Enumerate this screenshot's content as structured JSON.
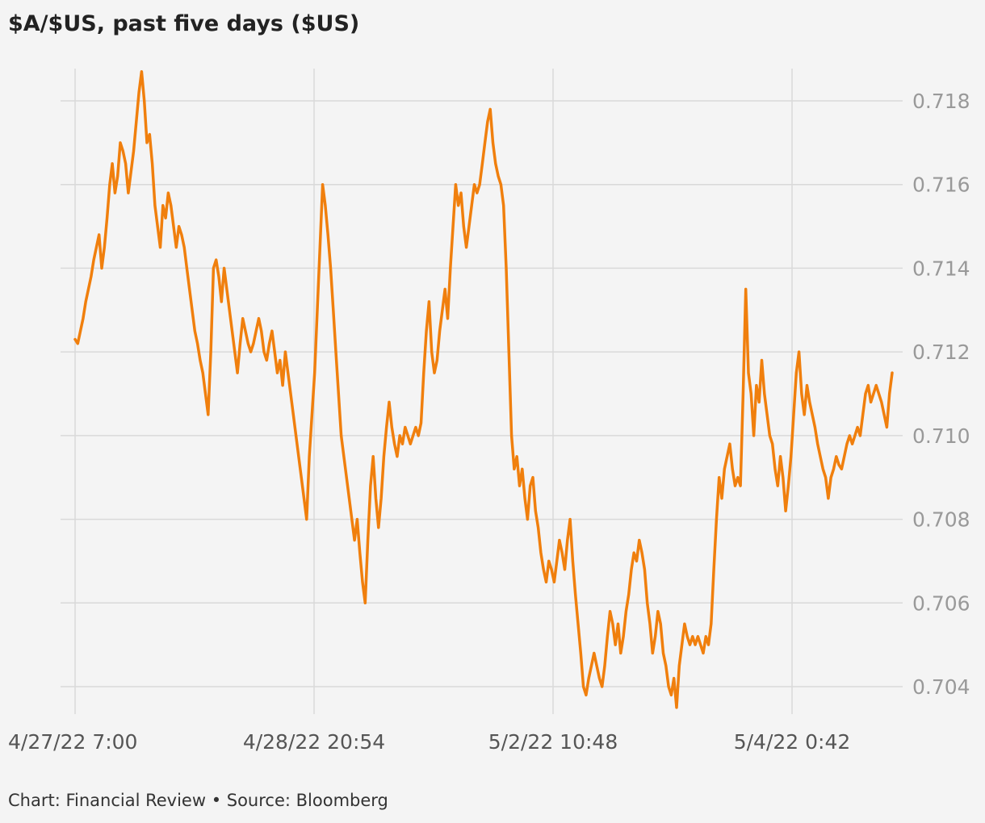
{
  "title": "$A/$US, past five days ($US)",
  "footer": "Chart: Financial Review • Source: Bloomberg",
  "chart_data": {
    "type": "line",
    "title": "$A/$US, past five days ($US)",
    "xlabel": "",
    "ylabel": "",
    "x_ticks": [
      "4/27/22 7:00",
      "4/28/22 20:54",
      "5/2/22 10:48",
      "5/4/22 0:42"
    ],
    "y_ticks": [
      0.704,
      0.706,
      0.708,
      0.71,
      0.712,
      0.714,
      0.716,
      0.718
    ],
    "ylim": [
      0.7033,
      0.7188
    ],
    "y_axis_side": "right",
    "grid": true,
    "color": "#f07f0d",
    "series": [
      {
        "values": [
          0.7123,
          0.7122,
          0.7125,
          0.7128,
          0.7132,
          0.7135,
          0.7138,
          0.7142,
          0.7145,
          0.7148,
          0.714,
          0.7145,
          0.7152,
          0.716,
          0.7165,
          0.7158,
          0.7162,
          0.717,
          0.7168,
          0.7165,
          0.7158,
          0.7163,
          0.7168,
          0.7175,
          0.7182,
          0.7187,
          0.718,
          0.717,
          0.7172,
          0.7165,
          0.7155,
          0.715,
          0.7145,
          0.7155,
          0.7152,
          0.7158,
          0.7155,
          0.715,
          0.7145,
          0.715,
          0.7148,
          0.7145,
          0.714,
          0.7135,
          0.713,
          0.7125,
          0.7122,
          0.7118,
          0.7115,
          0.711,
          0.7105,
          0.712,
          0.714,
          0.7142,
          0.7138,
          0.7132,
          0.714,
          0.7135,
          0.713,
          0.7125,
          0.712,
          0.7115,
          0.7122,
          0.7128,
          0.7125,
          0.7122,
          0.712,
          0.7122,
          0.7125,
          0.7128,
          0.7125,
          0.712,
          0.7118,
          0.7122,
          0.7125,
          0.712,
          0.7115,
          0.7118,
          0.7112,
          0.712,
          0.7115,
          0.711,
          0.7105,
          0.71,
          0.7095,
          0.709,
          0.7085,
          0.708,
          0.7095,
          0.7105,
          0.7115,
          0.713,
          0.7145,
          0.716,
          0.7155,
          0.7148,
          0.714,
          0.713,
          0.712,
          0.711,
          0.71,
          0.7095,
          0.709,
          0.7085,
          0.708,
          0.7075,
          0.708,
          0.7072,
          0.7065,
          0.706,
          0.7075,
          0.7088,
          0.7095,
          0.7085,
          0.7078,
          0.7085,
          0.7095,
          0.7102,
          0.7108,
          0.7102,
          0.7098,
          0.7095,
          0.71,
          0.7098,
          0.7102,
          0.71,
          0.7098,
          0.71,
          0.7102,
          0.71,
          0.7103,
          0.7115,
          0.7125,
          0.7132,
          0.712,
          0.7115,
          0.7118,
          0.7125,
          0.713,
          0.7135,
          0.7128,
          0.714,
          0.715,
          0.716,
          0.7155,
          0.7158,
          0.715,
          0.7145,
          0.715,
          0.7155,
          0.716,
          0.7158,
          0.716,
          0.7165,
          0.717,
          0.7175,
          0.7178,
          0.717,
          0.7165,
          0.7162,
          0.716,
          0.7155,
          0.714,
          0.712,
          0.71,
          0.7092,
          0.7095,
          0.7088,
          0.7092,
          0.7085,
          0.708,
          0.7088,
          0.709,
          0.7082,
          0.7078,
          0.7072,
          0.7068,
          0.7065,
          0.707,
          0.7068,
          0.7065,
          0.707,
          0.7075,
          0.7072,
          0.7068,
          0.7075,
          0.708,
          0.707,
          0.7062,
          0.7055,
          0.7048,
          0.704,
          0.7038,
          0.7042,
          0.7045,
          0.7048,
          0.7045,
          0.7042,
          0.704,
          0.7045,
          0.7052,
          0.7058,
          0.7055,
          0.705,
          0.7055,
          0.7048,
          0.7052,
          0.7058,
          0.7062,
          0.7068,
          0.7072,
          0.707,
          0.7075,
          0.7072,
          0.7068,
          0.706,
          0.7055,
          0.7048,
          0.7052,
          0.7058,
          0.7055,
          0.7048,
          0.7045,
          0.704,
          0.7038,
          0.7042,
          0.7035,
          0.7045,
          0.705,
          0.7055,
          0.7052,
          0.705,
          0.7052,
          0.705,
          0.7052,
          0.705,
          0.7048,
          0.7052,
          0.705,
          0.7055,
          0.7068,
          0.708,
          0.709,
          0.7085,
          0.7092,
          0.7095,
          0.7098,
          0.7092,
          0.7088,
          0.709,
          0.7088,
          0.711,
          0.7135,
          0.7115,
          0.711,
          0.71,
          0.7112,
          0.7108,
          0.7118,
          0.711,
          0.7105,
          0.71,
          0.7098,
          0.7092,
          0.7088,
          0.7095,
          0.709,
          0.7082,
          0.7088,
          0.7095,
          0.7105,
          0.7115,
          0.712,
          0.711,
          0.7105,
          0.7112,
          0.7108,
          0.7105,
          0.7102,
          0.7098,
          0.7095,
          0.7092,
          0.709,
          0.7085,
          0.709,
          0.7092,
          0.7095,
          0.7093,
          0.7092,
          0.7095,
          0.7098,
          0.71,
          0.7098,
          0.71,
          0.7102,
          0.71,
          0.7105,
          0.711,
          0.7112,
          0.7108,
          0.711,
          0.7112,
          0.711,
          0.7108,
          0.7105,
          0.7102,
          0.711,
          0.7115
        ]
      }
    ]
  }
}
